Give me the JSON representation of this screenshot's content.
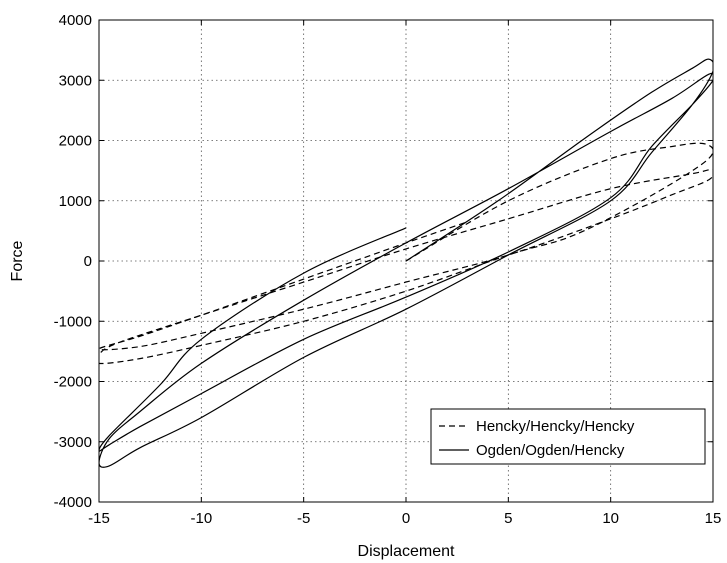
{
  "chart_data": {
    "type": "line",
    "title": "",
    "xlabel": "Displacement",
    "ylabel": "Force",
    "xlim": [
      -15,
      15
    ],
    "ylim": [
      -4000,
      4000
    ],
    "x_ticks": [
      -15,
      -10,
      -5,
      0,
      5,
      10,
      15
    ],
    "y_ticks": [
      -4000,
      -3000,
      -2000,
      -1000,
      0,
      1000,
      2000,
      3000,
      4000
    ],
    "x_tick_labels": [
      "-15",
      "-10",
      "-5",
      "0",
      "5",
      "10",
      "15"
    ],
    "y_tick_labels": [
      "-4000",
      "-3000",
      "-2000",
      "-1000",
      "0",
      "1000",
      "2000",
      "3000",
      "4000"
    ],
    "grid": true,
    "legend_position": "bottom-right",
    "series": [
      {
        "name": "Hencky/Hencky/Hencky",
        "style": "dashed",
        "color": "#000000",
        "points": [
          [
            0,
            0
          ],
          [
            5,
            1000
          ],
          [
            10,
            1700
          ],
          [
            13,
            1900
          ],
          [
            14.5,
            1950
          ],
          [
            15,
            1800
          ],
          [
            14,
            1500
          ],
          [
            11,
            900
          ],
          [
            8,
            400
          ],
          [
            5,
            100
          ],
          [
            0,
            -500
          ],
          [
            -5,
            -1000
          ],
          [
            -10,
            -1400
          ],
          [
            -13,
            -1620
          ],
          [
            -15,
            -1700
          ],
          [
            -15,
            -1550
          ],
          [
            -14,
            -1350
          ],
          [
            -10,
            -900
          ],
          [
            -5,
            -350
          ],
          [
            0,
            200
          ],
          [
            5,
            700
          ],
          [
            10,
            1200
          ],
          [
            14,
            1450
          ],
          [
            15,
            1520
          ],
          [
            14.8,
            1350
          ],
          [
            13,
            1100
          ],
          [
            10,
            700
          ],
          [
            5,
            100
          ],
          [
            0,
            -350
          ],
          [
            -5,
            -800
          ],
          [
            -10,
            -1200
          ],
          [
            -13,
            -1420
          ],
          [
            -15,
            -1460
          ],
          [
            -13,
            -1250
          ],
          [
            -10,
            -900
          ],
          [
            -5,
            -300
          ],
          [
            0,
            300
          ],
          [
            3,
            650
          ]
        ]
      },
      {
        "name": "Ogden/Ogden/Hencky",
        "style": "solid",
        "color": "#000000",
        "points": [
          [
            0,
            0
          ],
          [
            4.5,
            1000
          ],
          [
            9,
            2100
          ],
          [
            12,
            2800
          ],
          [
            14,
            3200
          ],
          [
            14.8,
            3350
          ],
          [
            15,
            3150
          ],
          [
            14,
            2600
          ],
          [
            12,
            1800
          ],
          [
            10,
            1000
          ],
          [
            5,
            100
          ],
          [
            0,
            -800
          ],
          [
            -5,
            -1600
          ],
          [
            -10,
            -2600
          ],
          [
            -13,
            -3100
          ],
          [
            -14.5,
            -3400
          ],
          [
            -15,
            -3350
          ],
          [
            -14.5,
            -2950
          ],
          [
            -13,
            -2500
          ],
          [
            -10,
            -1700
          ],
          [
            -5,
            -650
          ],
          [
            0,
            300
          ],
          [
            5,
            1200
          ],
          [
            10,
            2150
          ],
          [
            13,
            2700
          ],
          [
            14.8,
            3100
          ],
          [
            15,
            3000
          ],
          [
            14,
            2600
          ],
          [
            12,
            1900
          ],
          [
            10,
            1050
          ],
          [
            5,
            150
          ],
          [
            0,
            -600
          ],
          [
            -5,
            -1300
          ],
          [
            -10,
            -2200
          ],
          [
            -13,
            -2750
          ],
          [
            -14.5,
            -3050
          ],
          [
            -15,
            -3150
          ],
          [
            -14.5,
            -2900
          ],
          [
            -12,
            -2050
          ],
          [
            -10,
            -1300
          ],
          [
            -5,
            -200
          ],
          [
            0,
            550
          ]
        ]
      }
    ]
  }
}
